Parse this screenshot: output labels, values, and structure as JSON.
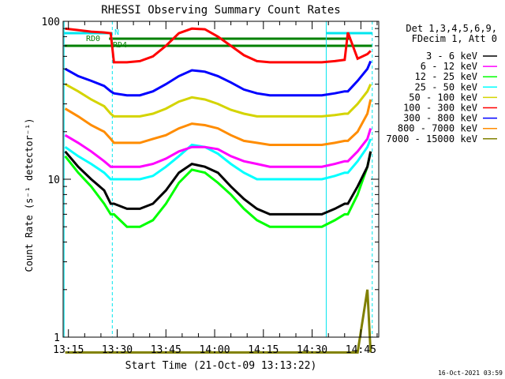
{
  "chart_data": {
    "type": "line",
    "title": "RHESSI Observing Summary Count Rates",
    "xlabel": "Start Time (21-Oct-09 13:13:22)",
    "ylabel": "Count Rate (s⁻¹ detector⁻¹)",
    "y_scale": "log",
    "ylim": [
      1,
      100
    ],
    "y_ticks": [
      "1",
      "10",
      "100"
    ],
    "xlim": [
      "13:13:22",
      "14:50:30"
    ],
    "x_ticks": [
      "13:15",
      "13:30",
      "13:45",
      "14:00",
      "14:15",
      "14:30",
      "14:45"
    ],
    "info": [
      "Det 1,3,4,5,6,9,",
      "FDecim 1, Att 0"
    ],
    "timestamp": "16-Oct-2021 03:59",
    "flags": [
      {
        "name": "N",
        "start": "13:13:40",
        "end": "13:28:30",
        "color": "#00e5ee"
      },
      {
        "name": "N",
        "start": "14:34:20",
        "end": "14:48:30",
        "color": "#00e5ee"
      },
      {
        "name": "RD0",
        "start": "13:27:30",
        "end": "14:42:00",
        "color": "#008000"
      },
      {
        "name": "RD4",
        "start": "13:13:40",
        "end": "14:48:30",
        "color": "#008000"
      }
    ],
    "vertical_lines": [
      {
        "time": "13:13:40",
        "color": "#00e5ee",
        "style": "solid"
      },
      {
        "time": "13:28:30",
        "color": "#00e5ee",
        "style": "dashed"
      },
      {
        "time": "14:34:20",
        "color": "#00e5ee",
        "style": "solid"
      },
      {
        "time": "14:48:30",
        "color": "#00e5ee",
        "style": "dashed"
      }
    ],
    "x": [
      "13:14",
      "13:18",
      "13:22",
      "13:26",
      "13:28",
      "13:29",
      "13:33",
      "13:37",
      "13:41",
      "13:45",
      "13:49",
      "13:53",
      "13:57",
      "14:01",
      "14:05",
      "14:09",
      "14:13",
      "14:17",
      "14:21",
      "14:25",
      "14:29",
      "14:33",
      "14:37",
      "14:40",
      "14:41",
      "14:44",
      "14:47",
      "14:48"
    ],
    "series": [
      {
        "name": "3 - 6 keV",
        "color": "#000000",
        "values": [
          15,
          12,
          10,
          8.5,
          7,
          7,
          6.5,
          6.5,
          7,
          8.5,
          11,
          12.5,
          12,
          11,
          9,
          7.5,
          6.5,
          6,
          6,
          6,
          6,
          6,
          6.5,
          7,
          7,
          9,
          12,
          15
        ]
      },
      {
        "name": "6 - 12 keV",
        "color": "#ff00ff",
        "values": [
          19,
          17,
          15,
          13,
          12,
          12,
          12,
          12,
          12.5,
          13.5,
          15,
          16,
          16,
          15.5,
          14,
          13,
          12.5,
          12,
          12,
          12,
          12,
          12,
          12.5,
          13,
          13,
          15,
          18,
          21
        ]
      },
      {
        "name": "12 - 25 keV",
        "color": "#00ff00",
        "values": [
          14,
          11,
          9,
          7,
          6,
          6,
          5,
          5,
          5.5,
          7,
          9.5,
          11.5,
          11,
          9.5,
          8,
          6.5,
          5.5,
          5,
          5,
          5,
          5,
          5,
          5.5,
          6,
          6,
          8,
          12,
          15
        ]
      },
      {
        "name": "25 - 50 keV",
        "color": "#00ffff",
        "values": [
          16,
          14,
          12.5,
          11,
          10,
          10,
          10,
          10,
          10.5,
          12,
          14,
          16.5,
          16,
          14.5,
          12.5,
          11,
          10,
          10,
          10,
          10,
          10,
          10,
          10.5,
          11,
          11,
          13,
          16,
          18
        ]
      },
      {
        "name": "50 - 100 keV",
        "color": "#d4d400",
        "values": [
          40,
          36,
          32,
          29,
          26,
          25,
          25,
          25,
          26,
          28,
          31,
          33,
          32,
          30,
          27.5,
          26,
          25,
          25,
          25,
          25,
          25,
          25,
          25.5,
          26,
          26,
          30,
          36,
          40
        ]
      },
      {
        "name": "100 - 300 keV",
        "color": "#ff0000",
        "values": [
          90,
          88,
          86,
          85,
          84,
          55,
          55,
          56,
          60,
          70,
          84,
          90,
          89,
          80,
          70,
          61,
          56,
          55,
          55,
          55,
          55,
          55,
          56,
          57,
          85,
          58,
          62,
          65
        ]
      },
      {
        "name": "300 - 800 keV",
        "color": "#0000ff",
        "values": [
          50,
          45,
          42,
          39,
          36,
          35,
          34,
          34,
          36,
          40,
          45,
          49,
          48,
          45,
          41,
          37,
          35,
          34,
          34,
          34,
          34,
          34,
          35,
          36,
          36,
          42,
          50,
          56
        ]
      },
      {
        "name": "800 - 7000 keV",
        "color": "#ff8c00",
        "values": [
          28,
          25,
          22,
          20,
          18,
          17,
          17,
          17,
          18,
          19,
          21,
          22.5,
          22,
          21,
          19,
          17.5,
          17,
          16.5,
          16.5,
          16.5,
          16.5,
          16.5,
          17,
          17.5,
          17.5,
          20,
          26,
          32
        ]
      },
      {
        "name": "7000 - 15000 keV",
        "color": "#808000",
        "values": [
          0.5,
          0.5,
          0.5,
          0.5,
          0.5,
          0.5,
          0.5,
          0.5,
          0.5,
          0.5,
          0.5,
          0.5,
          0.5,
          0.5,
          0.5,
          0.5,
          0.5,
          0.5,
          0.5,
          0.5,
          0.5,
          0.5,
          0.5,
          0.5,
          0.5,
          0.5,
          2,
          0.5
        ]
      }
    ]
  }
}
